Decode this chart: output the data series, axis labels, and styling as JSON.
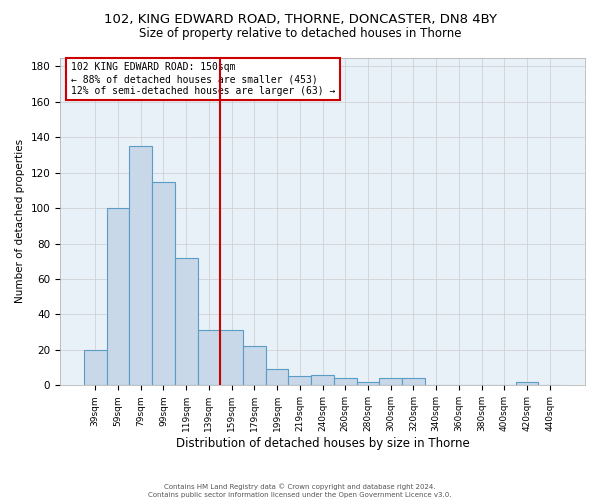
{
  "title_line1": "102, KING EDWARD ROAD, THORNE, DONCASTER, DN8 4BY",
  "title_line2": "Size of property relative to detached houses in Thorne",
  "xlabel": "Distribution of detached houses by size in Thorne",
  "ylabel": "Number of detached properties",
  "bar_labels": [
    "39sqm",
    "59sqm",
    "79sqm",
    "99sqm",
    "119sqm",
    "139sqm",
    "159sqm",
    "179sqm",
    "199sqm",
    "219sqm",
    "240sqm",
    "260sqm",
    "280sqm",
    "300sqm",
    "320sqm",
    "340sqm",
    "360sqm",
    "380sqm",
    "400sqm",
    "420sqm",
    "440sqm"
  ],
  "bar_values": [
    20,
    100,
    135,
    115,
    72,
    31,
    31,
    22,
    9,
    5,
    6,
    4,
    2,
    4,
    4,
    0,
    0,
    0,
    0,
    2,
    0
  ],
  "bar_color": "#c8d8e8",
  "bar_edge_color": "#5a9cc5",
  "vline_color": "#cc0000",
  "ylim": [
    0,
    185
  ],
  "yticks": [
    0,
    20,
    40,
    60,
    80,
    100,
    120,
    140,
    160,
    180
  ],
  "annotation_line1": "102 KING EDWARD ROAD: 150sqm",
  "annotation_line2": "← 88% of detached houses are smaller (453)",
  "annotation_line3": "12% of semi-detached houses are larger (63) →",
  "annotation_box_color": "#ffffff",
  "annotation_box_edge_color": "#cc0000",
  "grid_color": "#cccccc",
  "bg_color": "#e8f0f8",
  "footer_line1": "Contains HM Land Registry data © Crown copyright and database right 2024.",
  "footer_line2": "Contains public sector information licensed under the Open Government Licence v3.0.",
  "title_fontsize": 9.5,
  "subtitle_fontsize": 8.5
}
